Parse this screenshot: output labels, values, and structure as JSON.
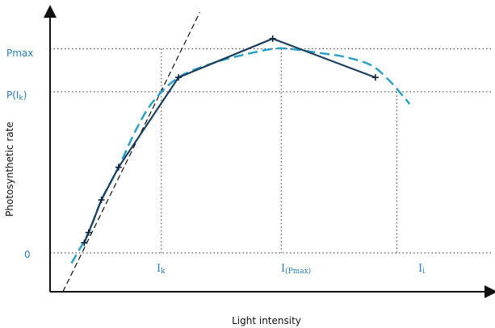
{
  "chart_data": {
    "type": "line",
    "xlabel": "Light intensity",
    "ylabel": "Photosynthetic rate",
    "y_tick_labels": {
      "pmax": "Pmax",
      "pik_prefix": "P(I",
      "pik_sub": "k",
      "pik_suffix": ")",
      "zero": "0"
    },
    "x_tick_labels": {
      "ik_main": "I",
      "ik_sub": "k",
      "ipmax_main": "I",
      "ipmax_sub": "(Pmax)",
      "ii_main": "I",
      "ii_sub": "i"
    },
    "key_points": {
      "Ik": 0.23,
      "IPmax": 0.51,
      "Ii": 0.78,
      "Pmax": 1.0,
      "PIk": 0.79
    },
    "x_range": [
      -0.03,
      1.0
    ],
    "y_range": [
      -0.19,
      1.2
    ],
    "series": [
      {
        "style": "solid-dark-with-markers",
        "color": "#1c3f5e",
        "points": [
          [
            0.05,
            0.05
          ],
          [
            0.06,
            0.1
          ],
          [
            0.09,
            0.26
          ],
          [
            0.13,
            0.42
          ],
          [
            0.27,
            0.86
          ],
          [
            0.49,
            1.05
          ],
          [
            0.73,
            0.86
          ]
        ]
      },
      {
        "style": "dashed-light",
        "color": "#2a9fc8",
        "points": [
          [
            0.02,
            -0.05
          ],
          [
            0.06,
            0.1
          ],
          [
            0.09,
            0.26
          ],
          [
            0.13,
            0.42
          ],
          [
            0.17,
            0.6
          ],
          [
            0.21,
            0.74
          ],
          [
            0.27,
            0.86
          ],
          [
            0.35,
            0.93
          ],
          [
            0.42,
            0.97
          ],
          [
            0.49,
            1.0
          ],
          [
            0.53,
            1.0
          ],
          [
            0.6,
            0.98
          ],
          [
            0.66,
            0.96
          ],
          [
            0.72,
            0.92
          ],
          [
            0.76,
            0.85
          ],
          [
            0.79,
            0.78
          ],
          [
            0.81,
            0.73
          ]
        ]
      },
      {
        "style": "dashed-black-tangent",
        "color": "#111111",
        "points": [
          [
            0.0,
            -0.19
          ],
          [
            0.32,
            1.18
          ]
        ]
      }
    ],
    "grid": "dotted-reference-lines"
  }
}
